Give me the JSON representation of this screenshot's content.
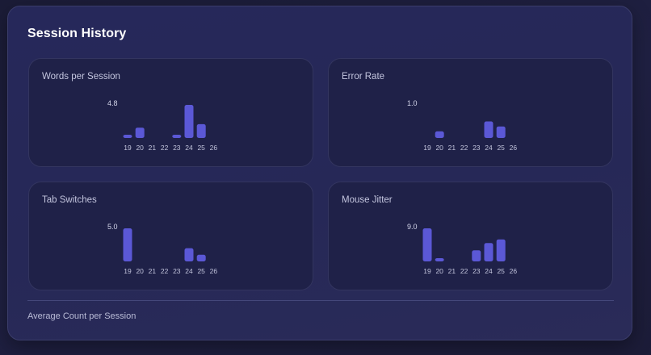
{
  "title": "Session History",
  "footer": "Average Count per Session",
  "colors": {
    "bar": "#5b58d6",
    "card_bg": "#1f2148",
    "panel_bg": "#26285a"
  },
  "chart_data": [
    {
      "type": "bar",
      "title": "Words per Session",
      "categories": [
        "19",
        "20",
        "21",
        "22",
        "23",
        "24",
        "25",
        "26"
      ],
      "values": [
        0.4,
        1.5,
        0,
        0,
        0.4,
        4.8,
        2.0,
        0
      ],
      "max_label": "4.8",
      "ylim": [
        0,
        4.8
      ]
    },
    {
      "type": "bar",
      "title": "Error Rate",
      "categories": [
        "19",
        "20",
        "21",
        "22",
        "23",
        "24",
        "25",
        "26"
      ],
      "values": [
        0,
        0.2,
        0,
        0,
        0,
        0.5,
        0.35,
        0
      ],
      "max_label": "1.0",
      "ylim": [
        0,
        1.0
      ]
    },
    {
      "type": "bar",
      "title": "Tab Switches",
      "categories": [
        "19",
        "20",
        "21",
        "22",
        "23",
        "24",
        "25",
        "26"
      ],
      "values": [
        5.0,
        0,
        0,
        0,
        0,
        2.0,
        1.0,
        0
      ],
      "max_label": "5.0",
      "ylim": [
        0,
        5.0
      ]
    },
    {
      "type": "bar",
      "title": "Mouse Jitter",
      "categories": [
        "19",
        "20",
        "21",
        "22",
        "23",
        "24",
        "25",
        "26"
      ],
      "values": [
        9.0,
        0.8,
        0,
        0,
        3.0,
        5.0,
        6.0,
        0
      ],
      "max_label": "9.0",
      "ylim": [
        0,
        9.0
      ]
    }
  ]
}
